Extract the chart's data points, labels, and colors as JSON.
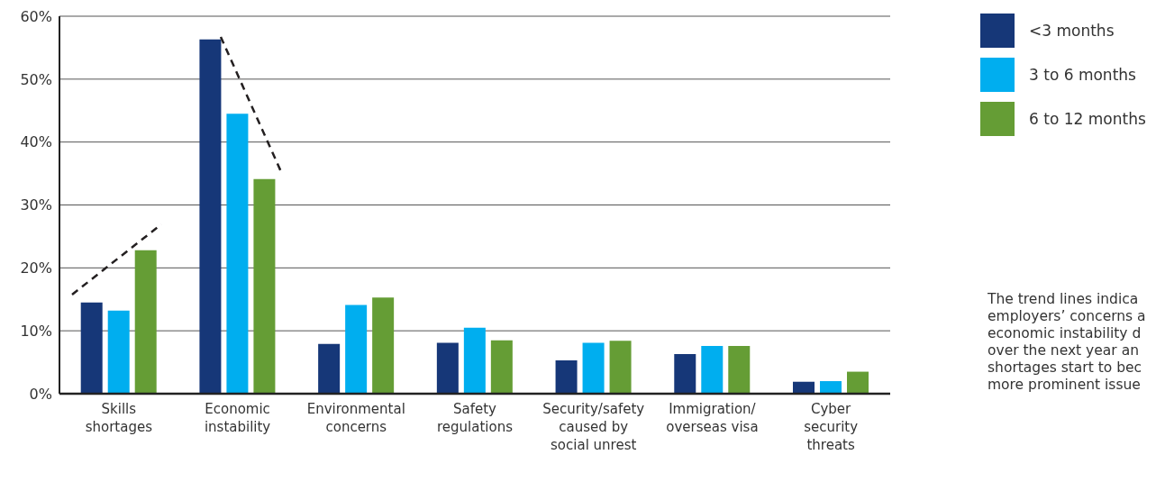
{
  "chart_data": {
    "type": "bar",
    "categories": [
      "Skills shortages",
      "Economic instability",
      "Environmental concerns",
      "Safety regulations",
      "Security/safety caused by social unrest",
      "Immigration/ overseas visa",
      "Cyber security threats"
    ],
    "series": [
      {
        "name": "<3 months",
        "color": "#163778",
        "values": [
          14.5,
          56.3,
          7.9,
          8.1,
          5.3,
          6.3,
          1.9
        ]
      },
      {
        "name": "3 to 6 months",
        "color": "#00aeef",
        "values": [
          13.2,
          44.5,
          14.1,
          10.5,
          8.1,
          7.6,
          2.0
        ]
      },
      {
        "name": "6 to 12 months",
        "color": "#659d35",
        "values": [
          22.8,
          34.1,
          15.3,
          8.5,
          8.4,
          7.6,
          3.5
        ]
      }
    ],
    "ylim": [
      0,
      60
    ],
    "yticks": [
      {
        "value": 0,
        "label": "0%"
      },
      {
        "value": 10,
        "label": "10%"
      },
      {
        "value": 20,
        "label": "20%"
      },
      {
        "value": 30,
        "label": "30%"
      },
      {
        "value": 40,
        "label": "40%"
      },
      {
        "value": 50,
        "label": "50%"
      },
      {
        "value": 60,
        "label": "60%"
      }
    ],
    "grid": "y",
    "legend": "top right",
    "annotations": [
      "The trend lines indica\nemployers’ concerns a\neconomic instability d\nover the next year an\nshortages start to bec\nmore prominent issue"
    ]
  }
}
